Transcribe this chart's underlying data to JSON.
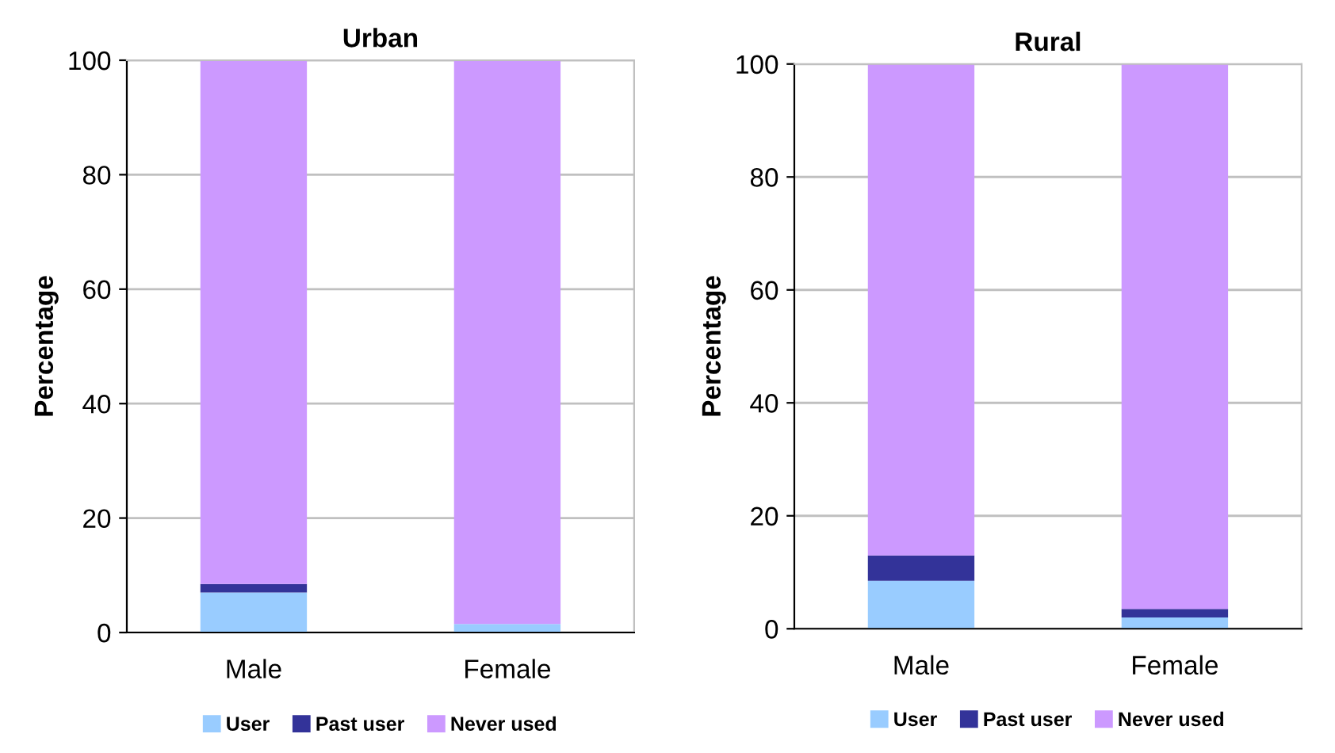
{
  "chart_data": [
    {
      "type": "bar",
      "title": "Urban",
      "ylabel": "Percentage",
      "categories": [
        "Male",
        "Female"
      ],
      "stacked": true,
      "ylim": [
        0,
        100
      ],
      "yticks": [
        0,
        20,
        40,
        60,
        80,
        100
      ],
      "grid": "y",
      "legend": "bottom",
      "series": [
        {
          "name": "User",
          "color": "#99ccff",
          "values": [
            7,
            1.5
          ]
        },
        {
          "name": "Past user",
          "color": "#333399",
          "values": [
            1.5,
            0
          ]
        },
        {
          "name": "Never used",
          "color": "#cc99ff",
          "values": [
            91.5,
            98.5
          ]
        }
      ]
    },
    {
      "type": "bar",
      "title": "Rural",
      "ylabel": "Percentage",
      "categories": [
        "Male",
        "Female"
      ],
      "stacked": true,
      "ylim": [
        0,
        100
      ],
      "yticks": [
        0,
        20,
        40,
        60,
        80,
        100
      ],
      "grid": "y",
      "legend": "bottom",
      "series": [
        {
          "name": "User",
          "color": "#99ccff",
          "values": [
            8.5,
            2
          ]
        },
        {
          "name": "Past user",
          "color": "#333399",
          "values": [
            4.5,
            1.5
          ]
        },
        {
          "name": "Never used",
          "color": "#cc99ff",
          "values": [
            87,
            96.5
          ]
        }
      ]
    }
  ]
}
